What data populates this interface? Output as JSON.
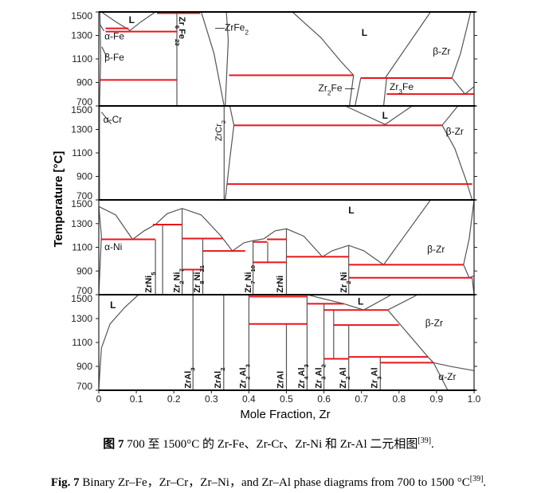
{
  "figure": {
    "y_axis_label": "Temperature [°C]",
    "x_axis_label": "Mole Fraction, Zr",
    "y_ticks": [
      "1500",
      "1300",
      "1100",
      "900",
      "700"
    ],
    "x_ticks": [
      "0",
      "0.1",
      "0.2",
      "0.3",
      "0.4",
      "0.5",
      "0.6",
      "0.7",
      "0.8",
      "0.9",
      "1.0"
    ],
    "isotherm_color": "#e8161b",
    "boundary_color": "#555555"
  },
  "caption": {
    "zh_prefix": "图 7",
    "zh_text": " 700 至 1500°C 的 Zr-Fe、Zr-Cr、Zr-Ni 和 Zr-Al 二元相图",
    "zh_ref": "[39]",
    "zh_end": ".",
    "en_prefix": "Fig. 7",
    "en_text": " Binary Zr–Fe，Zr–Cr，Zr–Ni，and Zr–Al phase diagrams from 700 to 1500 °C",
    "en_ref": "[39]",
    "en_end": "."
  },
  "chart_data": {
    "type": "line",
    "xlabel": "Mole Fraction, Zr",
    "ylabel": "Temperature [°C]",
    "xlim": [
      0,
      1.0
    ],
    "ylim": [
      700,
      1500
    ],
    "panels": [
      {
        "system": "Zr-Fe",
        "labels": [
          "L",
          "α-Fe",
          "β-Fe",
          "Zr6Fe23",
          "—ZrFe2",
          "L",
          "β-Zr",
          "Zr2Fe —",
          "Zr3Fe"
        ],
        "isotherms": [
          [
            0.155,
            0.27,
            1490
          ],
          [
            0.018,
            0.079,
            1360
          ],
          [
            0.018,
            0.208,
            1333
          ],
          [
            0.003,
            0.208,
            921
          ],
          [
            0.347,
            0.679,
            961
          ],
          [
            0.698,
            0.941,
            937
          ],
          [
            0.767,
            1.0,
            801
          ]
        ],
        "boundaries": [
          [
            [
              0.003,
              1500
            ],
            [
              0.005,
              1100
            ],
            [
              0.002,
              700
            ]
          ],
          [
            [
              0.003,
              1394
            ],
            [
              0.014,
              1338
            ]
          ],
          [
            [
              0.008,
              1203
            ],
            [
              0.022,
              1112
            ]
          ],
          [
            [
              0.007,
              1500
            ],
            [
              0.045,
              1417
            ],
            [
              0.083,
              1342
            ],
            [
              0.113,
              1417
            ],
            [
              0.151,
              1500
            ]
          ],
          [
            [
              0.208,
              1500
            ],
            [
              0.208,
              700
            ]
          ],
          [
            [
              0.273,
              1500
            ],
            [
              0.307,
              1146
            ],
            [
              0.334,
              700
            ]
          ],
          [
            [
              0.34,
              1500
            ],
            [
              0.345,
              1259
            ],
            [
              0.337,
              700
            ]
          ],
          [
            [
              0.516,
              1500
            ],
            [
              0.592,
              1281
            ],
            [
              0.645,
              1079
            ],
            [
              0.679,
              961
            ]
          ],
          [
            [
              0.763,
              937
            ],
            [
              0.884,
              1500
            ]
          ],
          [
            [
              0.991,
              1500
            ],
            [
              0.964,
              1146
            ],
            [
              0.941,
              937
            ],
            [
              0.976,
              801
            ],
            [
              1.0,
              865
            ]
          ],
          [
            [
              0.668,
              700
            ],
            [
              0.679,
              961
            ]
          ],
          [
            [
              0.683,
              700
            ],
            [
              0.698,
              937
            ]
          ],
          [
            [
              0.759,
              700
            ],
            [
              0.767,
              937
            ]
          ]
        ]
      },
      {
        "system": "Zr-Cr",
        "labels": [
          "α-Cr",
          "ZrCr2",
          "L",
          "β-Zr"
        ],
        "isotherms": [
          [
            0.36,
            0.915,
            1335
          ],
          [
            0.343,
            0.995,
            835
          ]
        ],
        "boundaries": [
          [
            [
              0.002,
              1500
            ],
            [
              0.002,
              700
            ]
          ],
          [
            [
              0.007,
              1448
            ],
            [
              0.033,
              1347
            ]
          ],
          [
            [
              0.334,
              1500
            ],
            [
              0.334,
              700
            ]
          ],
          [
            [
              0.349,
              1500
            ],
            [
              0.36,
              1335
            ],
            [
              0.349,
              1045
            ],
            [
              0.337,
              700
            ]
          ],
          [
            [
              0.657,
              1500
            ],
            [
              0.763,
              1342
            ],
            [
              0.835,
              1500
            ]
          ],
          [
            [
              0.957,
              1500
            ],
            [
              0.915,
              1335
            ],
            [
              0.949,
              1135
            ],
            [
              0.979,
              865
            ],
            [
              0.995,
              700
            ]
          ]
        ]
      },
      {
        "system": "Zr-Ni",
        "labels": [
          "L",
          "α-Ni",
          "β-Zr",
          "ZrNi5",
          "Zr2Ni7",
          "Zr8Ni21",
          "Zr7Ni10",
          "ZrNi",
          "Zr2Ni"
        ],
        "isotherms": [
          [
            0.144,
            0.222,
            1292
          ],
          [
            0.007,
            0.15,
            1167
          ],
          [
            0.222,
            0.33,
            1174
          ],
          [
            0.277,
            0.39,
            1069
          ],
          [
            0.222,
            0.277,
            912
          ],
          [
            0.411,
            0.448,
            1145
          ],
          [
            0.448,
            0.5,
            1167
          ],
          [
            0.411,
            0.5,
            973
          ],
          [
            0.5,
            0.666,
            1020
          ],
          [
            0.666,
            0.972,
            953
          ],
          [
            0.666,
            0.995,
            843
          ]
        ],
        "boundaries": [
          [
            [
              0,
              1444
            ],
            [
              0.045,
              1373
            ],
            [
              0.09,
              1167
            ],
            [
              0.121,
              1239
            ],
            [
              0.151,
              1292
            ],
            [
              0.182,
              1384
            ],
            [
              0.222,
              1428
            ],
            [
              0.273,
              1373
            ],
            [
              0.326,
              1194
            ],
            [
              0.356,
              1069
            ],
            [
              0.387,
              1138
            ],
            [
              0.411,
              1156
            ],
            [
              0.44,
              1172
            ],
            [
              0.47,
              1239
            ],
            [
              0.5,
              1256
            ],
            [
              0.546,
              1194
            ],
            [
              0.596,
              1020
            ],
            [
              0.622,
              1071
            ],
            [
              0.666,
              1116
            ],
            [
              0.706,
              1071
            ],
            [
              0.759,
              953
            ],
            [
              0.884,
              1500
            ]
          ],
          [
            [
              0,
              1444
            ],
            [
              0.007,
              1194
            ],
            [
              0,
              700
            ]
          ],
          [
            [
              0.151,
              1167
            ],
            [
              0.151,
              700
            ]
          ],
          [
            [
              0.17,
              1292
            ],
            [
              0.17,
              700
            ]
          ],
          [
            [
              0.222,
              1428
            ],
            [
              0.222,
              700
            ]
          ],
          [
            [
              0.251,
              912
            ],
            [
              0.251,
              700
            ]
          ],
          [
            [
              0.277,
              1174
            ],
            [
              0.277,
              700
            ]
          ],
          [
            [
              0.411,
              1156
            ],
            [
              0.411,
              700
            ]
          ],
          [
            [
              0.45,
              1145
            ],
            [
              0.45,
              973
            ]
          ],
          [
            [
              0.5,
              1256
            ],
            [
              0.5,
              700
            ]
          ],
          [
            [
              0.666,
              1116
            ],
            [
              0.666,
              700
            ]
          ],
          [
            [
              1.0,
              1500
            ],
            [
              0.987,
              1172
            ],
            [
              0.972,
              953
            ],
            [
              0.987,
              843
            ],
            [
              1.0,
              859
            ]
          ],
          [
            [
              0.995,
              843
            ],
            [
              1.0,
              700
            ]
          ]
        ]
      },
      {
        "system": "Zr-Al",
        "labels": [
          "L",
          "L",
          "β-Zr",
          "α-Zr",
          "ZrAl3",
          "ZrAl2",
          "Zr2Al3",
          "ZrAl",
          "Zr4Al3",
          "Zr3Al2",
          "Zr2Al",
          "Zr3Al"
        ],
        "isotherms": [
          [
            0.4,
            0.554,
            1484
          ],
          [
            0.4,
            0.555,
            1255
          ],
          [
            0.555,
            0.653,
            1424
          ],
          [
            0.6,
            0.77,
            1372
          ],
          [
            0.626,
            0.8,
            1246
          ],
          [
            0.6,
            0.666,
            963
          ],
          [
            0.666,
            0.877,
            979
          ],
          [
            0.75,
            0.892,
            931
          ]
        ],
        "boundaries": [
          [
            [
              0,
              717
            ],
            [
              0.007,
              1053
            ],
            [
              0.03,
              1255
            ],
            [
              0.068,
              1390
            ],
            [
              0.106,
              1500
            ]
          ],
          [
            [
              0.555,
              1500
            ],
            [
              0.653,
              1424
            ],
            [
              0.706,
              1372
            ],
            [
              0.78,
              1500
            ]
          ],
          [
            [
              0.77,
              1372
            ],
            [
              0.85,
              1500
            ]
          ],
          [
            [
              0.77,
              1372
            ],
            [
              0.877,
              979
            ],
            [
              0.892,
              931
            ],
            [
              0.93,
              700
            ]
          ],
          [
            [
              0.892,
              931
            ],
            [
              0.94,
              898
            ],
            [
              1.0,
              865
            ]
          ],
          [
            [
              0.251,
              1500
            ],
            [
              0.251,
              700
            ]
          ],
          [
            [
              0.333,
              1500
            ],
            [
              0.333,
              700
            ]
          ],
          [
            [
              0.4,
              1500
            ],
            [
              0.4,
              700
            ]
          ],
          [
            [
              0.5,
              1255
            ],
            [
              0.5,
              700
            ]
          ],
          [
            [
              0.555,
              1500
            ],
            [
              0.555,
              700
            ]
          ],
          [
            [
              0.6,
              1424
            ],
            [
              0.6,
              700
            ]
          ],
          [
            [
              0.626,
              1372
            ],
            [
              0.626,
              963
            ]
          ],
          [
            [
              0.666,
              1246
            ],
            [
              0.666,
              700
            ]
          ],
          [
            [
              0.75,
              979
            ],
            [
              0.75,
              700
            ]
          ]
        ]
      }
    ]
  }
}
